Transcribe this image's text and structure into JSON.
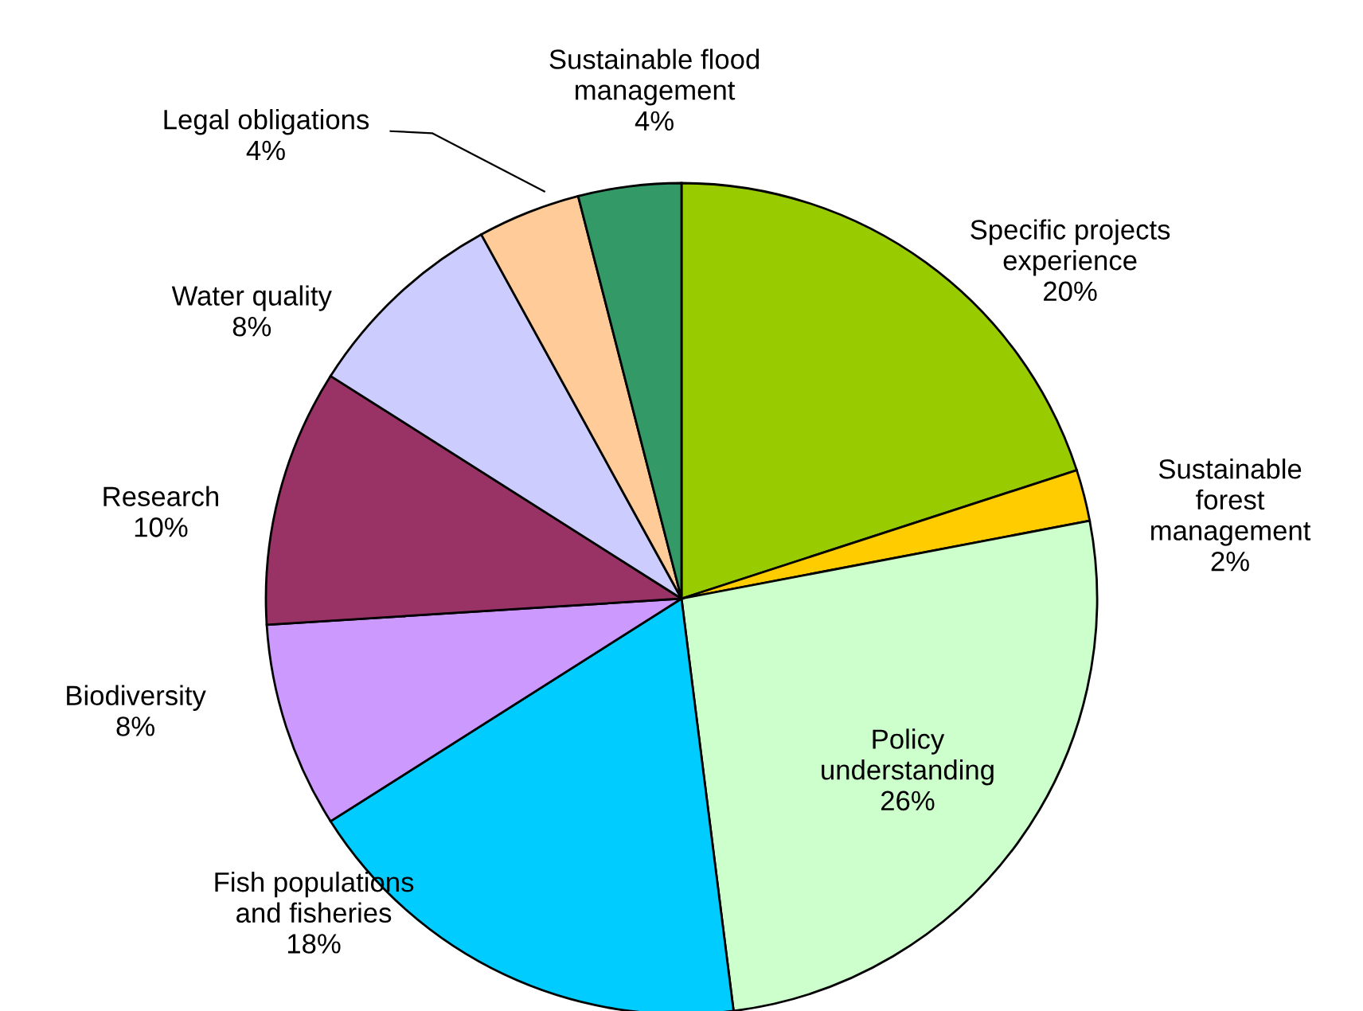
{
  "chart_data": {
    "type": "pie",
    "categories": [
      "Specific projects\nexperience",
      "Sustainable\nforest\nmanagement",
      "Policy\nunderstanding",
      "Fish populations\nand fisheries",
      "Biodiversity",
      "Research",
      "Water quality",
      "Legal obligations",
      "Sustainable flood\nmanagement"
    ],
    "values": [
      20,
      2,
      26,
      18,
      8,
      10,
      8,
      4,
      4
    ],
    "colors": [
      "#99cc00",
      "#ffcc00",
      "#ccffcc",
      "#00ccff",
      "#cc99ff",
      "#993366",
      "#ccccff",
      "#ffcc99",
      "#339966"
    ],
    "value_labels": [
      "20%",
      "2%",
      "26%",
      "18%",
      "8%",
      "10%",
      "8%",
      "4%",
      "4%"
    ],
    "legend": false
  }
}
